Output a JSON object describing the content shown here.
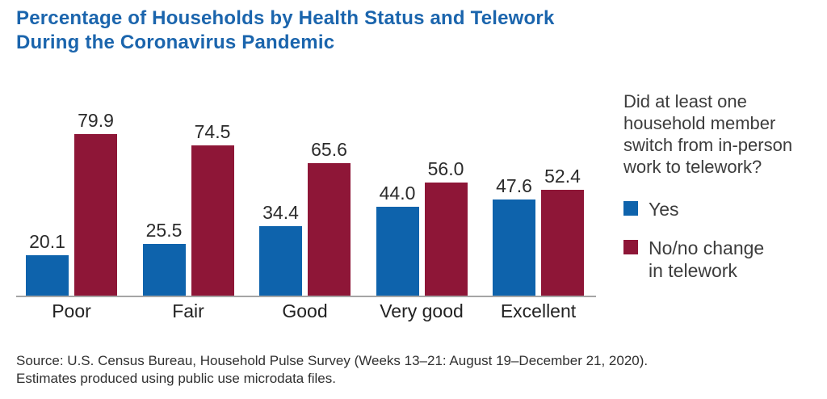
{
  "title": "Percentage of Households by Health Status and Telework During the Coronavirus Pandemic",
  "chart_data": {
    "type": "bar",
    "categories": [
      "Poor",
      "Fair",
      "Good",
      "Very good",
      "Excellent"
    ],
    "series": [
      {
        "name": "Yes",
        "color": "#0e63ac",
        "values": [
          20.1,
          25.5,
          34.4,
          44.0,
          47.6
        ]
      },
      {
        "name": "No/no change in telework",
        "color": "#8e1637",
        "values": [
          79.9,
          74.5,
          65.6,
          56.0,
          52.4
        ]
      }
    ],
    "title": "Percentage of Households by Health Status and Telework During the Coronavirus Pandemic",
    "xlabel": "",
    "ylabel": "",
    "ylim": [
      0,
      100
    ],
    "grid": false,
    "value_labels": true,
    "value_label_format": "0.1f",
    "legend_position": "right",
    "axis_color": "#a5a5a5"
  },
  "legend": {
    "title": "Did at least one\nhousehold member\nswitch from in-person\nwork to telework?",
    "items": [
      {
        "label": "Yes",
        "color": "#0e63ac"
      },
      {
        "label": "No/no change\nin telework",
        "color": "#8e1637"
      }
    ]
  },
  "source": {
    "line1": "Source: U.S. Census Bureau, Household Pulse Survey (Weeks 13–21: August 19–December 21, 2020).",
    "line2": "Estimates produced using public use microdata files."
  },
  "colors": {
    "title_blue": "#1b65ad",
    "bar_blue": "#0e63ac",
    "bar_maroon": "#8e1637",
    "axis_gray": "#a5a5a5",
    "text_dark": "#2b2b2b"
  }
}
